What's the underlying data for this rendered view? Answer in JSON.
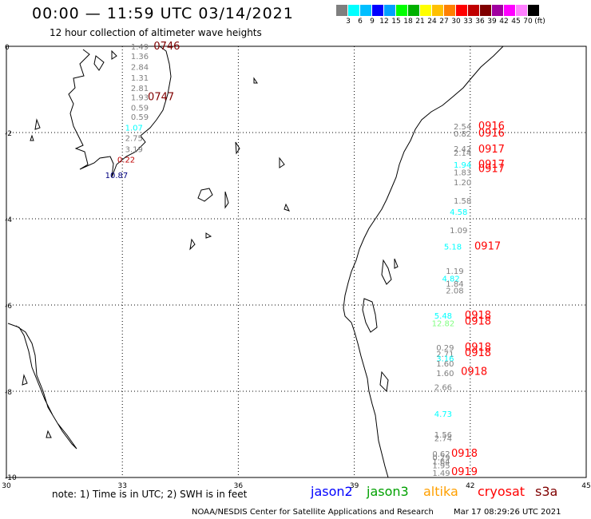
{
  "header": {
    "title": "00:00 — 11:59 UTC 03/14/2021",
    "subtitle": "12 hour collection of altimeter wave heights"
  },
  "legend": {
    "colors": [
      "#7f7f7f",
      "#00ffff",
      "#00bfff",
      "#0000ff",
      "#00a0ff",
      "#00ff00",
      "#00b000",
      "#ffff00",
      "#ffc000",
      "#ff8000",
      "#ff0000",
      "#c00000",
      "#800000",
      "#a000a0",
      "#ff00ff",
      "#ff80ff",
      "#000000"
    ],
    "labels": [
      "3",
      "6",
      "9",
      "12",
      "15",
      "18",
      "21",
      "24",
      "27",
      "30",
      "33",
      "36",
      "39",
      "42",
      "45",
      "70",
      "(ft)"
    ]
  },
  "axes": {
    "x_ticks": [
      "30",
      "33",
      "36",
      "39",
      "42",
      "45"
    ],
    "y_ticks": [
      "0",
      "-2",
      "-4",
      "-6",
      "-8",
      "-10"
    ],
    "x_range": [
      30,
      45
    ],
    "y_range": [
      -10,
      0
    ]
  },
  "wave_labels": [
    {
      "text": "1.49",
      "lon": 33.45,
      "lat": 0.0,
      "color": "#7f7f7f"
    },
    {
      "text": "0746",
      "lon": 34.15,
      "lat": 0.0,
      "color": "#800000"
    },
    {
      "text": "1.36",
      "lon": 33.45,
      "lat": -0.22,
      "color": "#7f7f7f"
    },
    {
      "text": "2.84",
      "lon": 33.45,
      "lat": -0.47,
      "color": "#7f7f7f"
    },
    {
      "text": "1.31",
      "lon": 33.45,
      "lat": -0.72,
      "color": "#7f7f7f"
    },
    {
      "text": "2.81",
      "lon": 33.45,
      "lat": -0.96,
      "color": "#7f7f7f"
    },
    {
      "text": "1.93",
      "lon": 33.45,
      "lat": -1.18,
      "color": "#7f7f7f"
    },
    {
      "text": "0747",
      "lon": 34.0,
      "lat": -1.18,
      "color": "#800000"
    },
    {
      "text": "0.59",
      "lon": 33.45,
      "lat": -1.42,
      "color": "#7f7f7f"
    },
    {
      "text": "0.59",
      "lon": 33.45,
      "lat": -1.63,
      "color": "#7f7f7f"
    },
    {
      "text": "1.07",
      "lon": 33.3,
      "lat": -1.88,
      "color": "#00ffff"
    },
    {
      "text": "2.75",
      "lon": 33.3,
      "lat": -2.12,
      "color": "#7f7f7f"
    },
    {
      "text": "3.19",
      "lon": 33.3,
      "lat": -2.38,
      "color": "#7f7f7f"
    },
    {
      "text": "0.22",
      "lon": 33.1,
      "lat": -2.62,
      "color": "#c00000"
    },
    {
      "text": "10.87",
      "lon": 32.85,
      "lat": -2.98,
      "color": "#000080"
    },
    {
      "text": "2.54",
      "lon": 41.8,
      "lat": -1.85,
      "color": "#7f7f7f"
    },
    {
      "text": "0.82",
      "lon": 41.8,
      "lat": -2.02,
      "color": "#7f7f7f"
    },
    {
      "text": "0916",
      "lon": 42.55,
      "lat": -1.85,
      "color": "#ff0000"
    },
    {
      "text": "0916",
      "lon": 42.55,
      "lat": -2.02,
      "color": "#ff0000"
    },
    {
      "text": "2.42",
      "lon": 41.8,
      "lat": -2.37,
      "color": "#7f7f7f"
    },
    {
      "text": "2.14",
      "lon": 41.8,
      "lat": -2.46,
      "color": "#7f7f7f"
    },
    {
      "text": "0917",
      "lon": 42.55,
      "lat": -2.39,
      "color": "#ff0000"
    },
    {
      "text": "1.94",
      "lon": 41.8,
      "lat": -2.74,
      "color": "#00ffff"
    },
    {
      "text": "1.83",
      "lon": 41.8,
      "lat": -2.92,
      "color": "#7f7f7f"
    },
    {
      "text": "0917",
      "lon": 42.55,
      "lat": -2.74,
      "color": "#ff0000"
    },
    {
      "text": "0917",
      "lon": 42.55,
      "lat": -2.84,
      "color": "#ff0000"
    },
    {
      "text": "1.20",
      "lon": 41.8,
      "lat": -3.15,
      "color": "#7f7f7f"
    },
    {
      "text": "1.58",
      "lon": 41.8,
      "lat": -3.57,
      "color": "#7f7f7f"
    },
    {
      "text": "4.58",
      "lon": 41.7,
      "lat": -3.83,
      "color": "#00ffff"
    },
    {
      "text": "1.09",
      "lon": 41.7,
      "lat": -4.26,
      "color": "#7f7f7f"
    },
    {
      "text": "5.18",
      "lon": 41.55,
      "lat": -4.64,
      "color": "#00ffff"
    },
    {
      "text": "0917",
      "lon": 42.45,
      "lat": -4.64,
      "color": "#ff0000"
    },
    {
      "text": "1.19",
      "lon": 41.6,
      "lat": -5.2,
      "color": "#7f7f7f"
    },
    {
      "text": "4.82",
      "lon": 41.5,
      "lat": -5.38,
      "color": "#00ffff"
    },
    {
      "text": "1.84",
      "lon": 41.6,
      "lat": -5.5,
      "color": "#7f7f7f"
    },
    {
      "text": "2.08",
      "lon": 41.6,
      "lat": -5.66,
      "color": "#7f7f7f"
    },
    {
      "text": "5.48",
      "lon": 41.3,
      "lat": -6.24,
      "color": "#00ffff"
    },
    {
      "text": "12.82",
      "lon": 41.3,
      "lat": -6.42,
      "color": "#80ff80"
    },
    {
      "text": "0918",
      "lon": 42.2,
      "lat": -6.24,
      "color": "#ff0000"
    },
    {
      "text": "0918",
      "lon": 42.2,
      "lat": -6.38,
      "color": "#ff0000"
    },
    {
      "text": "0.29",
      "lon": 41.35,
      "lat": -6.98,
      "color": "#7f7f7f"
    },
    {
      "text": "2.71",
      "lon": 41.35,
      "lat": -7.13,
      "color": "#7f7f7f"
    },
    {
      "text": "0918",
      "lon": 42.2,
      "lat": -6.98,
      "color": "#ff0000"
    },
    {
      "text": "0918",
      "lon": 42.2,
      "lat": -7.11,
      "color": "#ff0000"
    },
    {
      "text": "3.16",
      "lon": 41.35,
      "lat": -7.23,
      "color": "#00ffff"
    },
    {
      "text": "1.60",
      "lon": 41.35,
      "lat": -7.35,
      "color": "#7f7f7f"
    },
    {
      "text": "1.60",
      "lon": 41.35,
      "lat": -7.57,
      "color": "#7f7f7f"
    },
    {
      "text": "0918",
      "lon": 42.1,
      "lat": -7.55,
      "color": "#ff0000"
    },
    {
      "text": "2.66",
      "lon": 41.3,
      "lat": -7.9,
      "color": "#7f7f7f"
    },
    {
      "text": "4.73",
      "lon": 41.3,
      "lat": -8.52,
      "color": "#00ffff"
    },
    {
      "text": "1.56",
      "lon": 41.3,
      "lat": -9.0,
      "color": "#7f7f7f"
    },
    {
      "text": "2.74",
      "lon": 41.3,
      "lat": -9.08,
      "color": "#7f7f7f"
    },
    {
      "text": "0.62",
      "lon": 41.25,
      "lat": -9.44,
      "color": "#7f7f7f"
    },
    {
      "text": "0.29",
      "lon": 41.25,
      "lat": -9.53,
      "color": "#7f7f7f"
    },
    {
      "text": "1.64",
      "lon": 41.25,
      "lat": -9.62,
      "color": "#7f7f7f"
    },
    {
      "text": "1.95",
      "lon": 41.25,
      "lat": -9.71,
      "color": "#7f7f7f"
    },
    {
      "text": "0918",
      "lon": 41.85,
      "lat": -9.44,
      "color": "#ff0000"
    },
    {
      "text": "1.49",
      "lon": 41.25,
      "lat": -9.89,
      "color": "#7f7f7f"
    },
    {
      "text": "0919",
      "lon": 41.85,
      "lat": -9.87,
      "color": "#ff0000"
    }
  ],
  "footer": {
    "note": "note: 1) Time is in UTC; 2) SWH is in feet",
    "missions": [
      {
        "name": "jason2",
        "color": "#0000ff"
      },
      {
        "name": "jason3",
        "color": "#00a000"
      },
      {
        "name": "altika",
        "color": "#ffa000"
      },
      {
        "name": "cryosat",
        "color": "#ff0000"
      },
      {
        "name": "s3a",
        "color": "#800000"
      }
    ],
    "credit": "NOAA/NESDIS Center for Satellite Applications and Research",
    "timestamp": "Mar 17 08:29:26 UTC 2021"
  }
}
